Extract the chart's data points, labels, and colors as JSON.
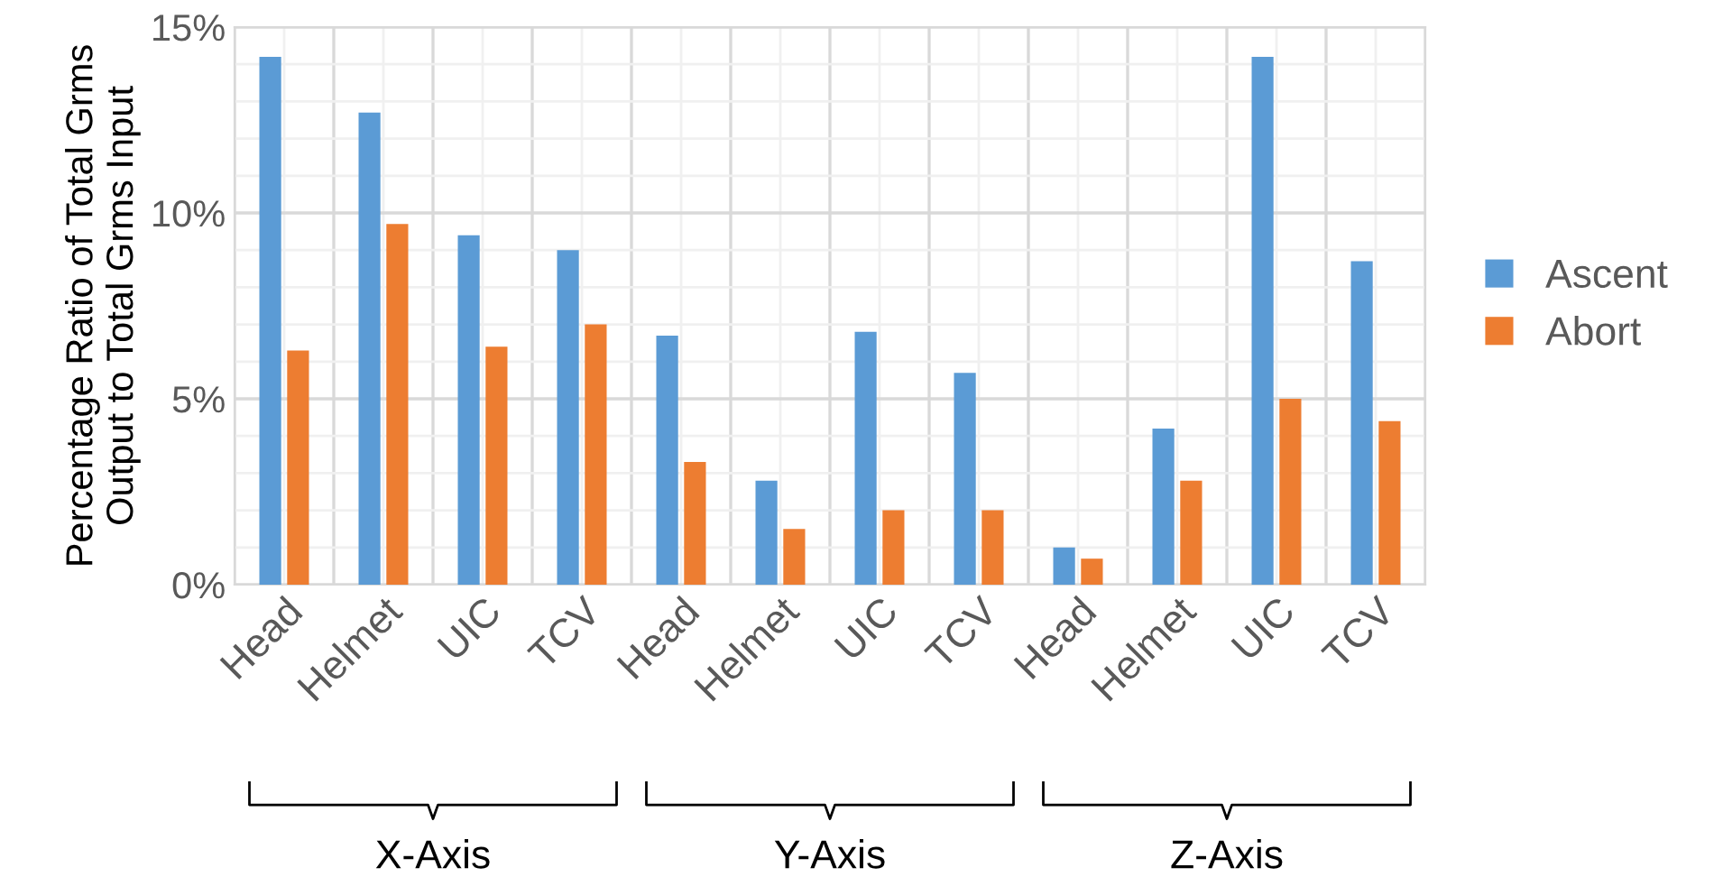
{
  "chart_data": {
    "type": "bar",
    "ylabel": "Percentage Ratio of Total Grms\nOutput to Total Grms Input",
    "categories": [
      "Head",
      "Helmet",
      "UIC",
      "TCV",
      "Head",
      "Helmet",
      "UIC",
      "TCV",
      "Head",
      "Helmet",
      "UIC",
      "TCV"
    ],
    "series": [
      {
        "name": "Ascent",
        "color": "#5b9bd5",
        "values": [
          14.2,
          12.7,
          9.4,
          9.0,
          6.7,
          2.8,
          6.8,
          5.7,
          1.0,
          4.2,
          14.2,
          8.7
        ]
      },
      {
        "name": "Abort",
        "color": "#ed7d31",
        "values": [
          6.3,
          9.7,
          6.4,
          7.0,
          3.3,
          1.5,
          2.0,
          2.0,
          0.7,
          2.8,
          5.0,
          4.4
        ]
      }
    ],
    "ylim": [
      0,
      15
    ],
    "yticks": [
      {
        "value": 0,
        "label": "0%"
      },
      {
        "value": 5,
        "label": "5%"
      },
      {
        "value": 10,
        "label": "10%"
      },
      {
        "value": 15,
        "label": "15%"
      }
    ],
    "annotations": [
      "X-Axis",
      "Y-Axis",
      "Z-Axis"
    ],
    "grid": true,
    "legend": "right"
  }
}
